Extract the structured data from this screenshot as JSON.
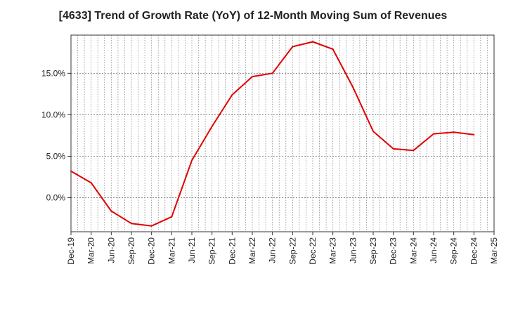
{
  "chart_data": {
    "type": "line",
    "title": "[4633]  Trend of Growth Rate (YoY) of 12-Month Moving Sum of Revenues",
    "xlabel": "",
    "ylabel": "",
    "x_tick_labels": [
      "Dec-19",
      "Mar-20",
      "Jun-20",
      "Sep-20",
      "Dec-20",
      "Mar-21",
      "Jun-21",
      "Sep-21",
      "Dec-21",
      "Mar-22",
      "Jun-22",
      "Sep-22",
      "Dec-22",
      "Mar-23",
      "Jun-23",
      "Sep-23",
      "Dec-23",
      "Mar-24",
      "Jun-24",
      "Sep-24",
      "Dec-24",
      "Mar-25"
    ],
    "y_ticks": [
      0,
      5,
      10,
      15
    ],
    "y_tick_labels": [
      "0.0%",
      "5.0%",
      "10.0%",
      "15.0%"
    ],
    "ylim": [
      -4.1,
      19.6
    ],
    "grid": true,
    "series": [
      {
        "color": "#e00000",
        "x": [
          "Dec-19",
          "Mar-20",
          "Jun-20",
          "Sep-20",
          "Dec-20",
          "Mar-21",
          "Jun-21",
          "Sep-21",
          "Dec-21",
          "Mar-22",
          "Jun-22",
          "Sep-22",
          "Dec-22",
          "Mar-23",
          "Jun-23",
          "Sep-23",
          "Dec-23",
          "Mar-24",
          "Jun-24",
          "Sep-24",
          "Dec-24"
        ],
        "values": [
          3.2,
          1.8,
          -1.6,
          -3.1,
          -3.4,
          -2.3,
          4.5,
          8.6,
          12.4,
          14.6,
          15.0,
          18.2,
          18.8,
          17.9,
          13.3,
          8.0,
          5.9,
          5.7,
          7.7,
          7.9,
          7.6
        ]
      }
    ]
  }
}
